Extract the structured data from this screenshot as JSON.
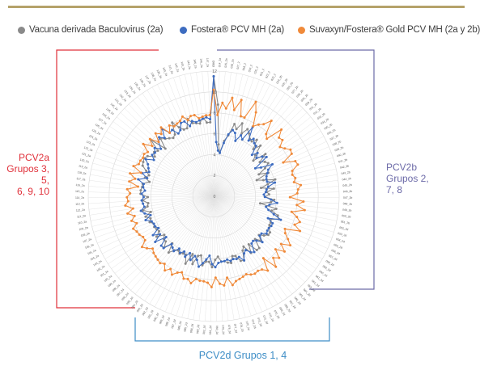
{
  "legend": {
    "items": [
      {
        "label": "Vacuna derivada Baculovirus (2a)",
        "color": "#8a8a8a"
      },
      {
        "label": "Fostera® PCV MH (2a)",
        "color": "#3d6cc0"
      },
      {
        "label": "Suvaxyn/Fostera® Gold PCV MH (2a y 2b)",
        "color": "#f08a3a"
      }
    ]
  },
  "group_labels": {
    "pcv2a": [
      "PCV2a",
      "Grupos 3, 5,",
      "6, 9, 10"
    ],
    "pcv2b": [
      "PCV2b",
      "Grupos 2,",
      "7, 8"
    ],
    "pcv2d": [
      "PCV2d Grupos 1, 4"
    ]
  },
  "colors": {
    "pcv2a_bracket": "#e0303a",
    "pcv2b_bracket": "#6c6aa8",
    "pcv2d_bracket": "#3d8dc6",
    "rule": "#b5a26a"
  },
  "chart_data": {
    "type": "radar",
    "radial_ticks": [
      0,
      2,
      4,
      6,
      8,
      10,
      12
    ],
    "rlim": [
      0,
      12
    ],
    "grid": true,
    "legend_placement": "top",
    "spokes": [
      "GMO",
      "014_2a",
      "015_2a",
      "016_2a",
      "017_2",
      "018_2",
      "019_2",
      "020_2",
      "021_2",
      "022_2",
      "023_2",
      "024_2b",
      "025_2b",
      "026_2b",
      "027_2b",
      "028_2b",
      "029_2b",
      "030_2b",
      "031_2b",
      "032_2b",
      "033_2b",
      "034_2b",
      "035_2b",
      "036_2b",
      "037_2b",
      "038_2b",
      "039_2b",
      "040_2b",
      "041_2b",
      "042_2b",
      "043_2b",
      "044_2b",
      "045_2b",
      "046_2b",
      "047_2b",
      "048_2b",
      "049_2b",
      "050_2b",
      "051_2b",
      "052_2d",
      "053_2d",
      "054_2d",
      "055_2d",
      "056_2d",
      "057_2d",
      "058_2d",
      "059_2d",
      "060_2d",
      "061_2d",
      "062_2d",
      "063_2d",
      "064_2d",
      "065_2d",
      "066_2d",
      "067_2d",
      "068_2d",
      "069_2d",
      "070_2d",
      "071_2d",
      "072_2d",
      "073_2d",
      "074_2d",
      "075_2d",
      "076_2d",
      "077_2d",
      "078_2d",
      "079_2d",
      "080_2d",
      "081_2d",
      "082_2d",
      "083_2d",
      "084_2d",
      "085_2d",
      "086_2d",
      "087_2d",
      "088_2d",
      "089_2d",
      "090_2d",
      "091_2d",
      "092_2d",
      "093_2d",
      "094_2d",
      "095_2d",
      "096_2d",
      "097_2d",
      "098_2a",
      "099_2a",
      "100_2a",
      "101_2a",
      "102_2a",
      "103_2a",
      "104_2a",
      "105_2a",
      "106_2a",
      "107_2a",
      "108_2a",
      "109_2a",
      "110_2a",
      "111_2a",
      "112_2a",
      "113_2a",
      "114_2a",
      "115_2a",
      "116_2a",
      "117_2a",
      "118_2a",
      "119_2a",
      "120_2a",
      "121_2a",
      "122_2a",
      "123_2a",
      "124_2a",
      "125_2a",
      "126_2a",
      "127_2a",
      "128_2a",
      "129_2a",
      "130_2a",
      "131_2a",
      "132_2a",
      "133_2a",
      "134_2a",
      "135_2a",
      "136_2a",
      "137_2a",
      "138_2a",
      "139_2a",
      "140_2a",
      "141_2a",
      "142_2a",
      "143_2a",
      "144_2a",
      "145_2a",
      "146_2a",
      "147_2a"
    ],
    "series": [
      {
        "name": "Vacuna derivada Baculovirus (2a)",
        "color": "#8a8a8a",
        "values": [
          11.5,
          8.8,
          5.0,
          4.2,
          5.4,
          6.0,
          7.2,
          6.8,
          7.5,
          6.6,
          7.2,
          6.9,
          6.5,
          6.4,
          6.8,
          5.9,
          6.6,
          5.6,
          5.1,
          6.4,
          5.5,
          5.9,
          6.1,
          5.6,
          4.8,
          5.7,
          4.4,
          5.0,
          6.1,
          5.3,
          4.6,
          5.8,
          5.1,
          5.3,
          4.9,
          5.8,
          5.5,
          4.5,
          6.1,
          5.7,
          6.4,
          6.6,
          5.9,
          6.0,
          6.0,
          6.1,
          6.4,
          6.4,
          6.1,
          5.7,
          6.2,
          5.7,
          6.6,
          6.6,
          5.7,
          6.5,
          5.6,
          5.9,
          6.8,
          6.7,
          6.1,
          6.0,
          6.6,
          6.5,
          6.3,
          6.3,
          5.8,
          6.1,
          6.8,
          6.3,
          6.3,
          6.7,
          5.8,
          5.9,
          6.8,
          5.9,
          7.0,
          6.2,
          6.2,
          6.4,
          6.2,
          6.4,
          6.9,
          6.0,
          6.8,
          6.3,
          6.3,
          6.0,
          6.7,
          6.2,
          6.3,
          6.4,
          6.3,
          6.6,
          6.4,
          6.8,
          6.2,
          6.9,
          6.4,
          6.3,
          6.8,
          6.3,
          7.0,
          7.0,
          6.9,
          6.9,
          6.3,
          6.8,
          6.5,
          6.9,
          7.4,
          7.5,
          7.6,
          7.4,
          6.8,
          7.1,
          6.9,
          8.1,
          6.5,
          7.5,
          7.2,
          7.0,
          6.8,
          7.0,
          8.1,
          7.4,
          7.0,
          7.0,
          7.8,
          7.3,
          7.2,
          7.1,
          7.7,
          7.1,
          7.1
        ]
      },
      {
        "name": "Fostera® PCV MH (2a)",
        "color": "#3d6cc0",
        "values": [
          11.5,
          5.2,
          4.4,
          4.2,
          5.2,
          6.1,
          6.6,
          6.4,
          5.7,
          6.4,
          6.1,
          7.6,
          6.3,
          6.7,
          6.4,
          6.3,
          5.4,
          5.9,
          5.5,
          6.0,
          6.3,
          4.8,
          5.3,
          6.4,
          5.8,
          5.6,
          5.4,
          5.3,
          5.3,
          6.0,
          5.3,
          5.1,
          5.0,
          4.8,
          4.9,
          5.5,
          6.1,
          5.4,
          5.1,
          5.4,
          6.0,
          6.8,
          5.6,
          6.2,
          6.2,
          6.1,
          6.1,
          6.2,
          5.8,
          5.8,
          6.4,
          5.9,
          5.7,
          5.8,
          6.6,
          6.4,
          6.0,
          6.2,
          6.8,
          6.3,
          6.4,
          6.3,
          6.4,
          6.2,
          6.3,
          6.3,
          6.4,
          6.8,
          6.5,
          5.7,
          6.1,
          6.5,
          6.9,
          6.3,
          6.0,
          6.5,
          5.9,
          6.4,
          6.0,
          6.3,
          6.0,
          6.5,
          6.3,
          6.1,
          6.9,
          6.9,
          6.0,
          7.1,
          6.3,
          6.9,
          6.1,
          6.3,
          6.3,
          6.4,
          6.9,
          6.3,
          6.8,
          7.1,
          6.7,
          6.8,
          6.9,
          6.7,
          6.9,
          6.6,
          6.8,
          6.8,
          7.4,
          6.6,
          7.2,
          6.6,
          6.8,
          7.0,
          7.4,
          6.7,
          7.1,
          7.0,
          7.3,
          6.8,
          7.4,
          7.7,
          7.3,
          8.1,
          7.4,
          7.5,
          6.9,
          7.1,
          7.7,
          7.7,
          7.1,
          7.5,
          7.3,
          7.4,
          7.5,
          7.6,
          7.4
        ]
      },
      {
        "name": "Suvaxyn/Fostera® Gold PCV MH (2a y 2b)",
        "color": "#f08a3a",
        "values": [
          10.2,
          7.8,
          9.0,
          8.5,
          9.6,
          8.5,
          9.6,
          8.1,
          8.1,
          9.9,
          9.0,
          7.7,
          8.1,
          8.4,
          9.1,
          7.8,
          7.5,
          9.1,
          8.4,
          8.5,
          7.9,
          8.2,
          8.6,
          8.5,
          7.4,
          8.5,
          8.6,
          7.9,
          7.8,
          8.0,
          7.8,
          8.4,
          8.1,
          8.0,
          7.3,
          8.6,
          8.0,
          8.8,
          7.6,
          8.2,
          8.6,
          8.2,
          8.9,
          7.5,
          7.7,
          8.2,
          8.7,
          7.9,
          8.6,
          7.8,
          8.6,
          8.2,
          9.0,
          7.6,
          8.8,
          8.4,
          8.3,
          8.4,
          8.3,
          8.1,
          8.2,
          8.3,
          8.4,
          8.7,
          7.9,
          8.6,
          8.4,
          7.8,
          8.7,
          8.3,
          8.2,
          8.2,
          8.1,
          8.6,
          8.3,
          8.4,
          7.9,
          8.1,
          8.5,
          8.1,
          8.5,
          8.0,
          8.2,
          8.1,
          8.0,
          7.9,
          7.7,
          8.1,
          8.4,
          7.8,
          7.8,
          8.0,
          8.1,
          8.3,
          7.8,
          8.2,
          7.8,
          8.4,
          7.8,
          8.5,
          8.2,
          8.3,
          8.0,
          8.3,
          7.3,
          8.2,
          7.7,
          8.3,
          7.3,
          8.2,
          7.8,
          7.8,
          7.7,
          7.8,
          7.6,
          8.4,
          7.6,
          8.2,
          7.4,
          8.2,
          7.8,
          8.3,
          7.4,
          8.0,
          7.7,
          7.8,
          7.9,
          8.2,
          7.7,
          8.0,
          8.0,
          7.6,
          7.7,
          7.8,
          7.8
        ]
      }
    ]
  }
}
